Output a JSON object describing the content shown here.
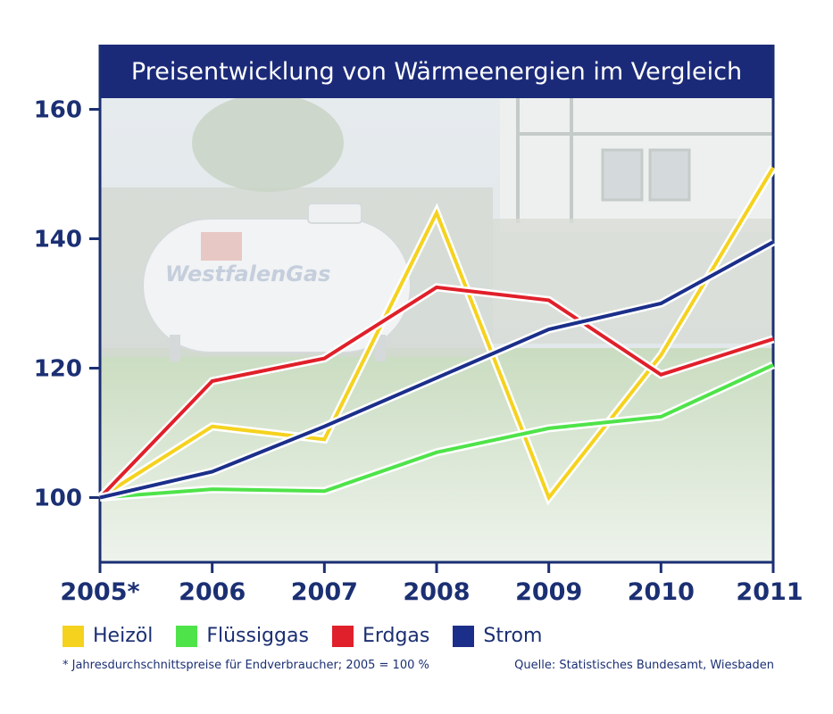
{
  "chart_data": {
    "type": "line",
    "title": "Preisentwicklung von Wärmeenergien im Vergleich",
    "categories": [
      "2005*",
      "2006",
      "2007",
      "2008",
      "2009",
      "2010",
      "2011"
    ],
    "y_ticks": [
      "100",
      "120",
      "140",
      "160"
    ],
    "ylim": [
      90,
      170
    ],
    "grid": false,
    "legend_position": "bottom",
    "background_photo_text": "WestfalenGas",
    "series": [
      {
        "name": "Heizöl",
        "color": "#f5d21e",
        "values": [
          100,
          111,
          109,
          144,
          100,
          122,
          151
        ]
      },
      {
        "name": "Flüssiggas",
        "color": "#4fe34a",
        "values": [
          100,
          101.3,
          101,
          107,
          110.7,
          112.5,
          120.5
        ]
      },
      {
        "name": "Erdgas",
        "color": "#e0202a",
        "values": [
          100,
          118,
          121.5,
          132.5,
          130.5,
          119,
          124.5
        ]
      },
      {
        "name": "Strom",
        "color": "#1b2f8a",
        "values": [
          100,
          104,
          111,
          118.5,
          126,
          130,
          139.5
        ]
      }
    ]
  },
  "footnote": "* Jahresdurchschnittspreise für Endverbraucher; 2005 = 100 %",
  "source": "Quelle:  Statistisches Bundesamt, Wiesbaden"
}
